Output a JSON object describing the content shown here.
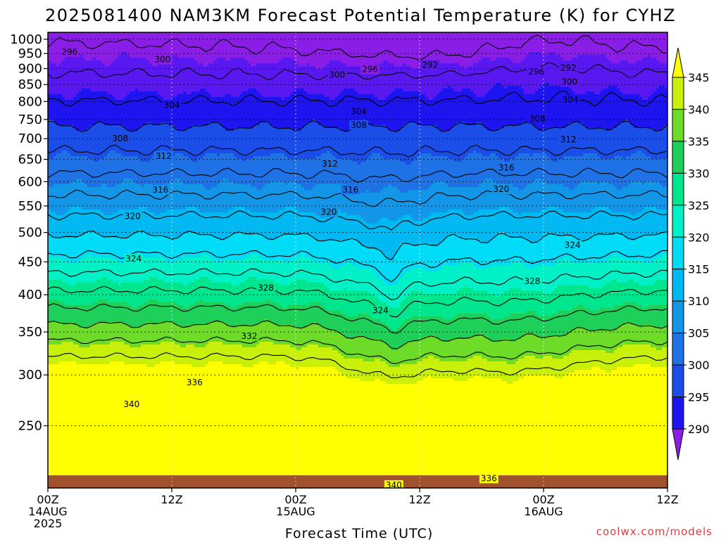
{
  "chart_data": {
    "type": "heatmap",
    "title": "2025081400 NAM3KM Forecast Potential Temperature (K) for CYHZ",
    "xlabel": "Forecast Time (UTC)",
    "ylabel": "",
    "credit": "coolwx.com/models",
    "x_ticks": [
      {
        "hour": 0,
        "lines": [
          "00Z",
          "14AUG",
          "2025"
        ]
      },
      {
        "hour": 12,
        "lines": [
          "12Z"
        ]
      },
      {
        "hour": 24,
        "lines": [
          "00Z",
          "15AUG"
        ]
      },
      {
        "hour": 36,
        "lines": [
          "12Z"
        ]
      },
      {
        "hour": 48,
        "lines": [
          "00Z",
          "16AUG"
        ]
      },
      {
        "hour": 60,
        "lines": [
          "12Z"
        ]
      }
    ],
    "xlim": [
      0,
      60
    ],
    "y_ticks": [
      250,
      300,
      350,
      400,
      450,
      500,
      550,
      600,
      650,
      700,
      750,
      800,
      850,
      900,
      950,
      1000
    ],
    "ylim": [
      1025,
      200
    ],
    "y_scale": "log-pressure",
    "colorbar": {
      "ticks": [
        345,
        340,
        335,
        330,
        325,
        320,
        315,
        310,
        305,
        300,
        295,
        290
      ],
      "levels": [
        285,
        290,
        295,
        300,
        305,
        310,
        315,
        320,
        325,
        330,
        335,
        340,
        345,
        350
      ],
      "colors": [
        "#8a1ee6",
        "#5a18f0",
        "#1e14f0",
        "#1b4ee8",
        "#1e72e6",
        "#1496e8",
        "#00b8f2",
        "#00dcf8",
        "#00f0c8",
        "#00e68e",
        "#1ed05a",
        "#6cdc28",
        "#c8f00a",
        "#ffff00"
      ]
    },
    "contour_labels": [
      {
        "value": 340,
        "x": 33.5,
        "p": 202
      },
      {
        "value": 336,
        "x": 42.7,
        "p": 207
      },
      {
        "value": 340,
        "x": 8.1,
        "p": 270
      },
      {
        "value": 336,
        "x": 14.2,
        "p": 292
      },
      {
        "value": 332,
        "x": 19.5,
        "p": 345
      },
      {
        "value": 324,
        "x": 32.2,
        "p": 378
      },
      {
        "value": 328,
        "x": 21.1,
        "p": 410
      },
      {
        "value": 328,
        "x": 46.9,
        "p": 420
      },
      {
        "value": 324,
        "x": 8.3,
        "p": 455
      },
      {
        "value": 324,
        "x": 50.8,
        "p": 478
      },
      {
        "value": 320,
        "x": 8.2,
        "p": 530
      },
      {
        "value": 320,
        "x": 27.2,
        "p": 538
      },
      {
        "value": 316,
        "x": 10.9,
        "p": 583
      },
      {
        "value": 316,
        "x": 29.3,
        "p": 583
      },
      {
        "value": 320,
        "x": 43.9,
        "p": 584
      },
      {
        "value": 316,
        "x": 44.4,
        "p": 631
      },
      {
        "value": 312,
        "x": 11.2,
        "p": 658
      },
      {
        "value": 312,
        "x": 27.3,
        "p": 640
      },
      {
        "value": 312,
        "x": 50.4,
        "p": 698
      },
      {
        "value": 308,
        "x": 7.0,
        "p": 700
      },
      {
        "value": 308,
        "x": 30.1,
        "p": 735
      },
      {
        "value": 308,
        "x": 47.4,
        "p": 752
      },
      {
        "value": 304,
        "x": 12.0,
        "p": 790
      },
      {
        "value": 304,
        "x": 30.1,
        "p": 772
      },
      {
        "value": 304,
        "x": 50.6,
        "p": 805
      },
      {
        "value": 300,
        "x": 50.5,
        "p": 858
      },
      {
        "value": 300,
        "x": 28.0,
        "p": 880
      },
      {
        "value": 296,
        "x": 31.2,
        "p": 898
      },
      {
        "value": 296,
        "x": 47.3,
        "p": 890
      },
      {
        "value": 292,
        "x": 37.0,
        "p": 912
      },
      {
        "value": 292,
        "x": 50.4,
        "p": 902
      },
      {
        "value": 300,
        "x": 11.1,
        "p": 930
      },
      {
        "value": 296,
        "x": 2.1,
        "p": 955
      }
    ]
  }
}
